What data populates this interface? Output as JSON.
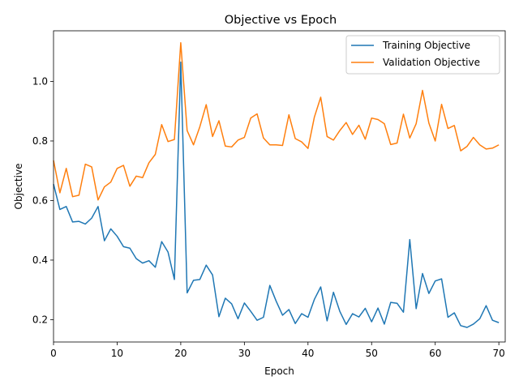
{
  "chart_data": {
    "type": "line",
    "title": "Objective vs Epoch",
    "xlabel": "Epoch",
    "ylabel": "Objective",
    "xlim": [
      0,
      71
    ],
    "ylim": [
      0.125,
      1.17
    ],
    "xticks": [
      0,
      10,
      20,
      30,
      40,
      50,
      60,
      70
    ],
    "yticks": [
      0.2,
      0.4,
      0.6,
      0.8,
      1.0
    ],
    "ytick_labels": [
      "0.2",
      "0.4",
      "0.6",
      "0.8",
      "1.0"
    ],
    "grid": false,
    "legend_position": "top-right",
    "series": [
      {
        "name": "Training Objective",
        "color": "#1f77b4",
        "values": [
          0.655,
          0.57,
          0.58,
          0.528,
          0.53,
          0.521,
          0.541,
          0.58,
          0.465,
          0.505,
          0.48,
          0.445,
          0.44,
          0.405,
          0.39,
          0.398,
          0.376,
          0.462,
          0.427,
          0.335,
          1.065,
          0.29,
          0.332,
          0.335,
          0.383,
          0.35,
          0.21,
          0.272,
          0.253,
          0.203,
          0.256,
          0.228,
          0.198,
          0.208,
          0.315,
          0.262,
          0.215,
          0.234,
          0.187,
          0.22,
          0.208,
          0.268,
          0.31,
          0.196,
          0.292,
          0.228,
          0.184,
          0.22,
          0.209,
          0.238,
          0.193,
          0.239,
          0.185,
          0.258,
          0.255,
          0.225,
          0.469,
          0.237,
          0.355,
          0.288,
          0.33,
          0.337,
          0.208,
          0.223,
          0.18,
          0.174,
          0.185,
          0.203,
          0.247,
          0.198,
          0.19
        ]
      },
      {
        "name": "Validation Objective",
        "color": "#ff7f0e",
        "values": [
          0.735,
          0.626,
          0.708,
          0.613,
          0.618,
          0.722,
          0.713,
          0.602,
          0.646,
          0.662,
          0.708,
          0.718,
          0.648,
          0.682,
          0.677,
          0.727,
          0.755,
          0.855,
          0.798,
          0.805,
          1.13,
          0.835,
          0.787,
          0.848,
          0.922,
          0.815,
          0.868,
          0.783,
          0.78,
          0.803,
          0.812,
          0.877,
          0.891,
          0.81,
          0.787,
          0.787,
          0.785,
          0.888,
          0.808,
          0.797,
          0.775,
          0.88,
          0.947,
          0.815,
          0.803,
          0.835,
          0.862,
          0.822,
          0.853,
          0.806,
          0.877,
          0.872,
          0.858,
          0.788,
          0.793,
          0.89,
          0.81,
          0.858,
          0.97,
          0.86,
          0.8,
          0.923,
          0.842,
          0.852,
          0.767,
          0.782,
          0.812,
          0.787,
          0.773,
          0.776,
          0.787
        ]
      }
    ]
  }
}
